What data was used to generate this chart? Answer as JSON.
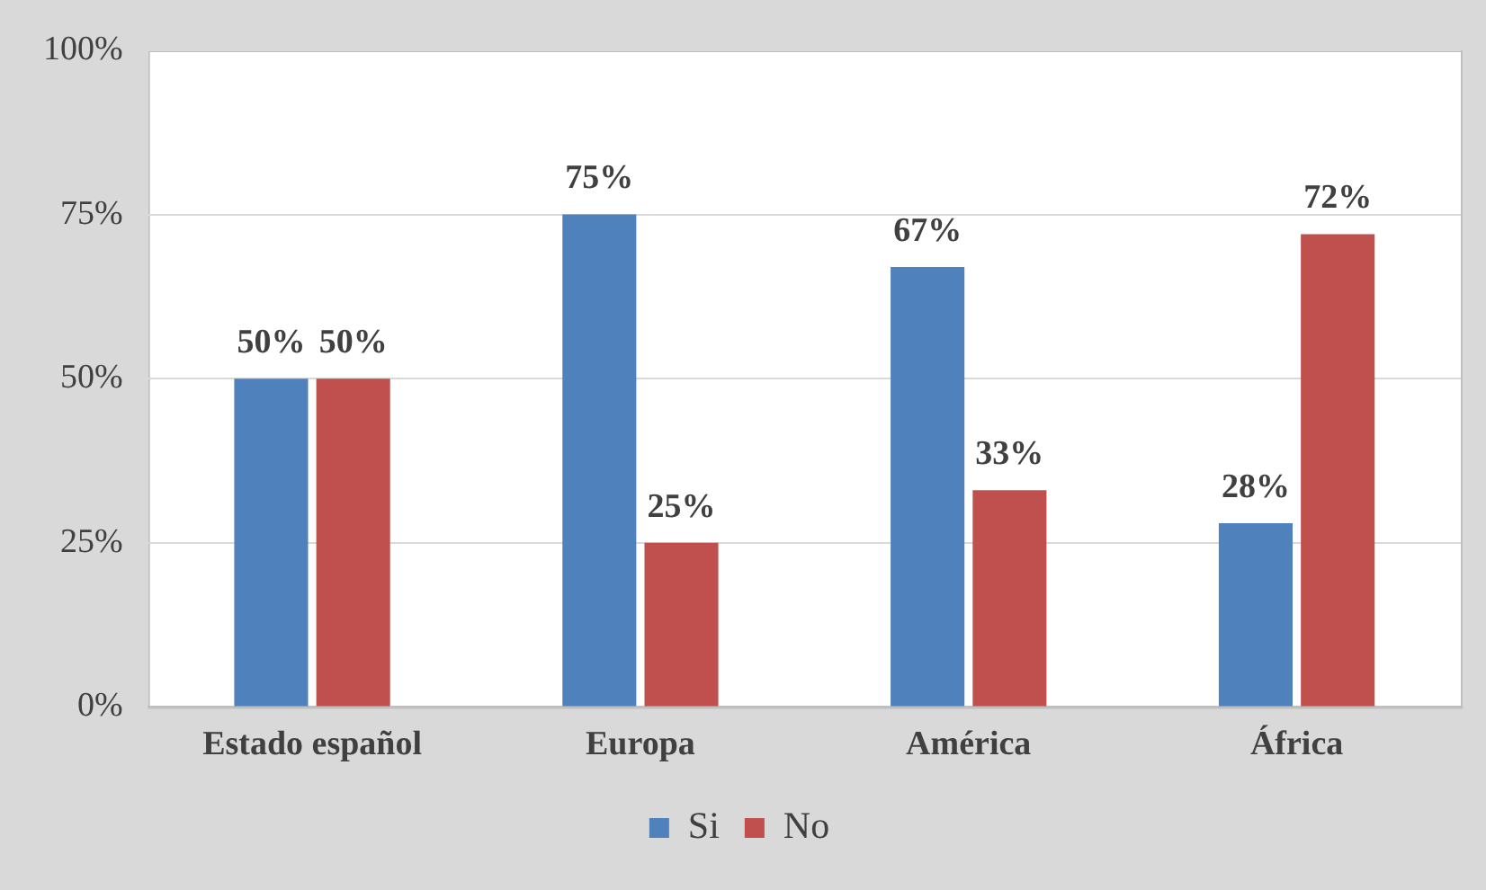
{
  "chart_data": {
    "type": "bar",
    "categories": [
      "Estado español",
      "Europa",
      "América",
      "África"
    ],
    "series": [
      {
        "name": "Si",
        "color": "#4f81bd",
        "values": [
          50,
          75,
          67,
          28
        ]
      },
      {
        "name": "No",
        "color": "#c0504d",
        "values": [
          50,
          25,
          33,
          72
        ]
      }
    ],
    "ylim": [
      0,
      100
    ],
    "yticks": [
      {
        "value": 0,
        "label": "0%"
      },
      {
        "value": 25,
        "label": "25%"
      },
      {
        "value": 50,
        "label": "50%"
      },
      {
        "value": 75,
        "label": "75%"
      },
      {
        "value": 100,
        "label": "100%"
      }
    ],
    "value_labels": [
      [
        "50%",
        "75%",
        "67%",
        "28%"
      ],
      [
        "50%",
        "25%",
        "33%",
        "72%"
      ]
    ],
    "grid": "y",
    "legend": "bottom"
  }
}
